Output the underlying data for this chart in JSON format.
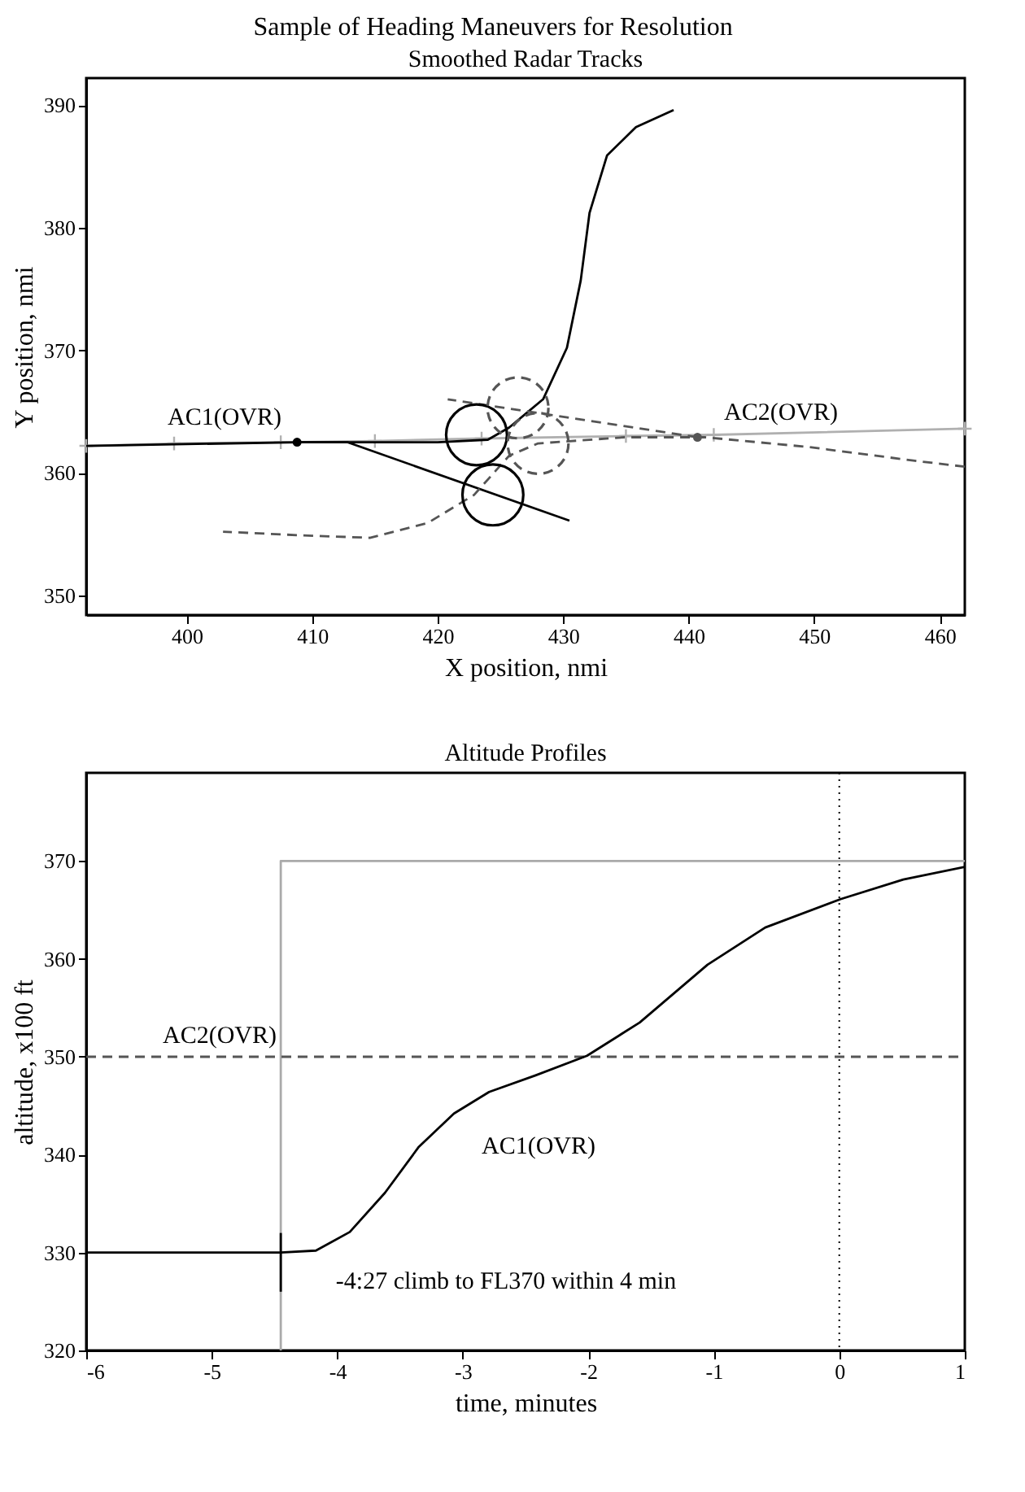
{
  "chart_data": [
    {
      "type": "line",
      "title": "Sample of Heading Maneuvers for Resolution",
      "subtitle": "Smoothed Radar Tracks",
      "xlabel": "X position, nmi",
      "ylabel": "Y position, nmi",
      "xlim": [
        392,
        462
      ],
      "ylim": [
        348.4,
        392.2
      ],
      "xticks": [
        400,
        410,
        420,
        430,
        440,
        450,
        460
      ],
      "yticks": [
        350,
        360,
        370,
        380,
        390
      ],
      "grid": false,
      "series": [
        {
          "color": "#b0b0b0",
          "line_style": "solid",
          "marker": "cross",
          "x": [
            392,
            399,
            407.5,
            415,
            423.5,
            435,
            442,
            462
          ],
          "values": [
            362.2,
            362.4,
            362.5,
            362.6,
            362.8,
            363.0,
            363.1,
            363.6
          ]
        },
        {
          "color": "#000000",
          "line_style": "solid",
          "marker": "none",
          "x": [
            392,
            409,
            416,
            420,
            424,
            425.7,
            428.4,
            430.3,
            431.4,
            432.1,
            433.5,
            435.8,
            438.8
          ],
          "values": [
            362.2,
            362.5,
            362.5,
            362.5,
            362.7,
            363.7,
            366.0,
            370.2,
            375.7,
            381.2,
            385.9,
            388.2,
            389.6
          ]
        },
        {
          "color": "#000000",
          "line_style": "solid",
          "marker": "none",
          "x": [
            408.8,
            412.8,
            430.5
          ],
          "values": [
            362.5,
            362.5,
            356.1
          ]
        },
        {
          "color": "#555555",
          "line_style": "dashed",
          "marker": "none",
          "x": [
            440.7,
            420.8
          ],
          "values": [
            362.9,
            366.0
          ]
        },
        {
          "color": "#555555",
          "line_style": "dashed",
          "marker": "none",
          "x": [
            462,
            457.9,
            449.6,
            441.3,
            434.9,
            428.0,
            425.7,
            422.9,
            419.2,
            414.6,
            409.1,
            402.9
          ],
          "values": [
            360.5,
            361.0,
            362.1,
            362.9,
            362.9,
            362.4,
            361.4,
            358.2,
            355.9,
            354.7,
            354.9,
            355.2
          ]
        },
        {
          "type": "bubble",
          "color": "#000000",
          "line_style": "solid",
          "x": [
            423.1
          ],
          "values": [
            363.1
          ],
          "sizes": [
            1
          ]
        },
        {
          "type": "bubble",
          "color": "#000000",
          "line_style": "solid",
          "x": [
            424.4
          ],
          "values": [
            358.2
          ],
          "sizes": [
            1
          ]
        },
        {
          "type": "bubble",
          "color": "#555555",
          "line_style": "dashed",
          "x": [
            426.4
          ],
          "values": [
            365.3
          ],
          "sizes": [
            1
          ]
        },
        {
          "type": "bubble",
          "color": "#555555",
          "line_style": "dashed",
          "x": [
            428.0
          ],
          "values": [
            362.4
          ],
          "sizes": [
            1
          ]
        },
        {
          "type": "scatter",
          "color": "#000000",
          "marker": "circle",
          "x": [
            408.8
          ],
          "values": [
            362.5
          ]
        },
        {
          "type": "scatter",
          "color": "#555555",
          "marker": "circle",
          "x": [
            440.7
          ],
          "values": [
            362.9
          ]
        }
      ],
      "annotations": [
        "AC1(OVR)",
        "AC2(OVR)"
      ]
    },
    {
      "type": "line",
      "title": "Altitude Profiles",
      "xlabel": "time, minutes",
      "ylabel": "altitude, x100 ft",
      "xlim": [
        -6,
        1
      ],
      "ylim": [
        320,
        379
      ],
      "xticks": [
        -6,
        -5,
        -4,
        -3,
        -2,
        -1,
        0,
        1
      ],
      "yticks": [
        320,
        330,
        340,
        350,
        360,
        370
      ],
      "grid": false,
      "series": [
        {
          "color": "#aaaaaa",
          "line_style": "solid",
          "x": [
            -4.45,
            -4.45,
            1
          ],
          "values": [
            320,
            370,
            370
          ]
        },
        {
          "color": "#555555",
          "line_style": "dashed",
          "x": [
            -6,
            1
          ],
          "values": [
            350,
            350
          ]
        },
        {
          "color": "#000000",
          "line_style": "solid",
          "x": [
            -6,
            -4.45,
            -4.17,
            -3.9,
            -3.62,
            -3.35,
            -3.07,
            -2.79,
            -2.42,
            -2.01,
            -1.59,
            -1.05,
            -0.59,
            0.01,
            0.51,
            1.0
          ],
          "values": [
            330,
            330,
            330.2,
            332.1,
            336.1,
            340.8,
            344.2,
            346.4,
            348.1,
            350.1,
            353.5,
            359.4,
            363.2,
            366.1,
            368.1,
            369.4
          ]
        },
        {
          "color": "#000000",
          "line_style": "solid",
          "x": [
            -4.45,
            -4.45
          ],
          "values": [
            326,
            332
          ]
        }
      ],
      "ref_lines": [
        {
          "axis": "x",
          "value": 0,
          "line_style": "dotted",
          "color": "#000000"
        }
      ],
      "annotations": [
        "AC2(OVR)",
        "AC1(OVR)",
        "-4:27 climb to FL370 within 4 min"
      ]
    }
  ]
}
